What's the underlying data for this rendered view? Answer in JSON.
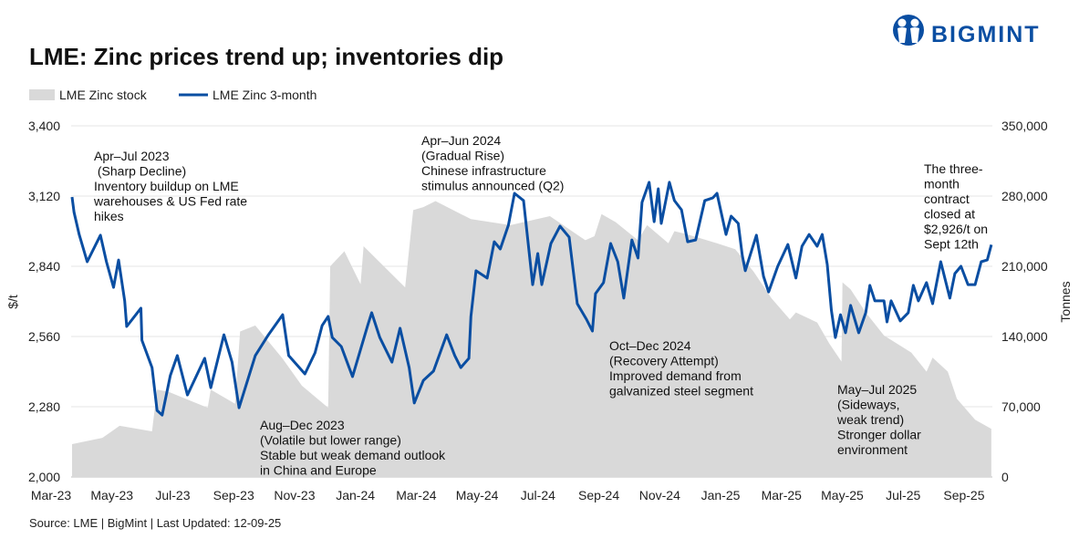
{
  "title": "LME: Zinc prices trend up; inventories dip",
  "brand": {
    "name": "BIGMINT",
    "color": "#0a4ea2"
  },
  "legend": [
    {
      "label": "LME Zinc stock",
      "color": "#d9d9d9",
      "kind": "area"
    },
    {
      "label": "LME Zinc 3-month",
      "color": "#0a4ea2",
      "kind": "line"
    }
  ],
  "source": "Source: LME | BigMint | Last Updated: 12-09-25",
  "chart_data": {
    "type": "line",
    "title": "LME: Zinc prices trend up; inventories dip",
    "ylabel": "$/t",
    "y2label": "Tonnes",
    "ylim": [
      2000,
      3400
    ],
    "y2lim": [
      0,
      350000
    ],
    "yticks": [
      "2,000",
      "2,280",
      "2,560",
      "2,840",
      "3,120",
      "3,400"
    ],
    "y2ticks": [
      "0",
      "70,000",
      "140,000",
      "210,000",
      "280,000",
      "350,000"
    ],
    "xticks": [
      "Mar-23",
      "May-23",
      "Jul-23",
      "Sep-23",
      "Nov-23",
      "Jan-24",
      "Mar-24",
      "May-24",
      "Jul-24",
      "Sep-24",
      "Nov-24",
      "Jan-25",
      "Mar-25",
      "May-25",
      "Jul-25",
      "Sep-25"
    ],
    "grid": true,
    "legend_position": "top-left",
    "series": [
      {
        "name": "LME Zinc stock",
        "type": "area",
        "axis": "right",
        "color": "#d9d9d9",
        "points": [
          [
            "2023-03-19",
            32700
          ],
          [
            "2023-04-18",
            39000
          ],
          [
            "2023-05-05",
            51000
          ],
          [
            "2023-06-06",
            45500
          ],
          [
            "2023-06-11",
            87000
          ],
          [
            "2023-06-22",
            85000
          ],
          [
            "2023-07-31",
            69000
          ],
          [
            "2023-08-03",
            87000
          ],
          [
            "2023-08-27",
            73000
          ],
          [
            "2023-09-01",
            145000
          ],
          [
            "2023-09-16",
            151000
          ],
          [
            "2023-10-13",
            118000
          ],
          [
            "2023-11-01",
            91000
          ],
          [
            "2023-11-27",
            69000
          ],
          [
            "2023-11-29",
            210000
          ],
          [
            "2023-12-13",
            225000
          ],
          [
            "2023-12-29",
            192000
          ],
          [
            "2024-01-01",
            230000
          ],
          [
            "2024-02-11",
            189000
          ],
          [
            "2024-02-19",
            266000
          ],
          [
            "2024-02-29",
            269000
          ],
          [
            "2024-03-12",
            275000
          ],
          [
            "2024-04-16",
            257000
          ],
          [
            "2024-05-25",
            251000
          ],
          [
            "2024-07-03",
            260000
          ],
          [
            "2024-08-07",
            236000
          ],
          [
            "2024-08-16",
            240000
          ],
          [
            "2024-08-23",
            262000
          ],
          [
            "2024-09-06",
            254000
          ],
          [
            "2024-09-28",
            236000
          ],
          [
            "2024-10-07",
            251000
          ],
          [
            "2024-10-28",
            233000
          ],
          [
            "2024-11-03",
            245000
          ],
          [
            "2024-11-15",
            242000
          ],
          [
            "2024-12-15",
            233000
          ],
          [
            "2025-01-02",
            227000
          ],
          [
            "2025-01-20",
            205000
          ],
          [
            "2025-02-07",
            178000
          ],
          [
            "2025-02-25",
            157000
          ],
          [
            "2025-03-03",
            164000
          ],
          [
            "2025-03-24",
            154000
          ],
          [
            "2025-04-05",
            133000
          ],
          [
            "2025-04-17",
            115000
          ],
          [
            "2025-04-18",
            194000
          ],
          [
            "2025-04-26",
            187000
          ],
          [
            "2025-05-11",
            164000
          ],
          [
            "2025-05-29",
            141000
          ],
          [
            "2025-06-25",
            124000
          ],
          [
            "2025-07-10",
            105000
          ],
          [
            "2025-07-16",
            119000
          ],
          [
            "2025-07-31",
            105000
          ],
          [
            "2025-08-09",
            78000
          ],
          [
            "2025-08-27",
            57000
          ],
          [
            "2025-09-12",
            48000
          ]
        ]
      },
      {
        "name": "LME Zinc 3-month",
        "type": "line",
        "axis": "left",
        "color": "#0a4ea2",
        "points": [
          [
            "2023-03-19",
            3116
          ],
          [
            "2023-03-21",
            3055
          ],
          [
            "2023-03-26",
            2967
          ],
          [
            "2023-04-03",
            2858
          ],
          [
            "2023-04-16",
            2964
          ],
          [
            "2023-04-22",
            2858
          ],
          [
            "2023-04-29",
            2756
          ],
          [
            "2023-05-04",
            2865
          ],
          [
            "2023-05-10",
            2702
          ],
          [
            "2023-05-12",
            2600
          ],
          [
            "2023-05-26",
            2673
          ],
          [
            "2023-05-27",
            2545
          ],
          [
            "2023-06-06",
            2436
          ],
          [
            "2023-06-11",
            2265
          ],
          [
            "2023-06-16",
            2247
          ],
          [
            "2023-06-24",
            2404
          ],
          [
            "2023-07-01",
            2484
          ],
          [
            "2023-07-11",
            2327
          ],
          [
            "2023-07-28",
            2473
          ],
          [
            "2023-08-03",
            2356
          ],
          [
            "2023-08-16",
            2567
          ],
          [
            "2023-08-24",
            2458
          ],
          [
            "2023-08-31",
            2276
          ],
          [
            "2023-09-16",
            2484
          ],
          [
            "2023-09-29",
            2567
          ],
          [
            "2023-10-13",
            2647
          ],
          [
            "2023-10-19",
            2484
          ],
          [
            "2023-11-04",
            2411
          ],
          [
            "2023-11-14",
            2495
          ],
          [
            "2023-11-21",
            2604
          ],
          [
            "2023-11-27",
            2640
          ],
          [
            "2023-12-01",
            2556
          ],
          [
            "2023-12-10",
            2520
          ],
          [
            "2023-12-21",
            2400
          ],
          [
            "2024-01-05",
            2604
          ],
          [
            "2024-01-09",
            2655
          ],
          [
            "2024-01-17",
            2556
          ],
          [
            "2024-01-29",
            2458
          ],
          [
            "2024-02-06",
            2593
          ],
          [
            "2024-02-15",
            2436
          ],
          [
            "2024-02-20",
            2295
          ],
          [
            "2024-02-29",
            2385
          ],
          [
            "2024-03-10",
            2422
          ],
          [
            "2024-03-23",
            2567
          ],
          [
            "2024-03-31",
            2484
          ],
          [
            "2024-04-06",
            2436
          ],
          [
            "2024-04-14",
            2473
          ],
          [
            "2024-04-16",
            2640
          ],
          [
            "2024-04-21",
            2822
          ],
          [
            "2024-05-02",
            2793
          ],
          [
            "2024-05-09",
            2938
          ],
          [
            "2024-05-15",
            2909
          ],
          [
            "2024-05-23",
            3004
          ],
          [
            "2024-05-29",
            3131
          ],
          [
            "2024-06-07",
            3102
          ],
          [
            "2024-06-16",
            2767
          ],
          [
            "2024-06-21",
            2891
          ],
          [
            "2024-06-25",
            2767
          ],
          [
            "2024-06-30",
            2858
          ],
          [
            "2024-07-04",
            2931
          ],
          [
            "2024-07-13",
            3000
          ],
          [
            "2024-07-22",
            2956
          ],
          [
            "2024-07-30",
            2691
          ],
          [
            "2024-08-08",
            2629
          ],
          [
            "2024-08-14",
            2582
          ],
          [
            "2024-08-17",
            2731
          ],
          [
            "2024-08-25",
            2775
          ],
          [
            "2024-09-01",
            2931
          ],
          [
            "2024-09-08",
            2858
          ],
          [
            "2024-09-14",
            2713
          ],
          [
            "2024-09-22",
            2945
          ],
          [
            "2024-09-28",
            2873
          ],
          [
            "2024-10-02",
            3095
          ],
          [
            "2024-10-09",
            3175
          ],
          [
            "2024-10-14",
            3018
          ],
          [
            "2024-10-18",
            3149
          ],
          [
            "2024-10-21",
            3011
          ],
          [
            "2024-10-29",
            3175
          ],
          [
            "2024-11-03",
            3102
          ],
          [
            "2024-11-10",
            3065
          ],
          [
            "2024-11-16",
            2938
          ],
          [
            "2024-11-24",
            2945
          ],
          [
            "2024-12-03",
            3102
          ],
          [
            "2024-12-11",
            3113
          ],
          [
            "2024-12-15",
            3131
          ],
          [
            "2024-12-24",
            2967
          ],
          [
            "2024-12-29",
            3040
          ],
          [
            "2025-01-05",
            3011
          ],
          [
            "2025-01-09",
            2884
          ],
          [
            "2025-01-12",
            2822
          ],
          [
            "2025-01-23",
            2964
          ],
          [
            "2025-01-30",
            2800
          ],
          [
            "2025-02-04",
            2738
          ],
          [
            "2025-02-13",
            2840
          ],
          [
            "2025-02-23",
            2927
          ],
          [
            "2025-03-03",
            2793
          ],
          [
            "2025-03-09",
            2920
          ],
          [
            "2025-03-16",
            2967
          ],
          [
            "2025-03-24",
            2920
          ],
          [
            "2025-03-29",
            2967
          ],
          [
            "2025-04-03",
            2847
          ],
          [
            "2025-04-07",
            2665
          ],
          [
            "2025-04-11",
            2556
          ],
          [
            "2025-04-16",
            2647
          ],
          [
            "2025-04-21",
            2575
          ],
          [
            "2025-04-26",
            2684
          ],
          [
            "2025-05-04",
            2575
          ],
          [
            "2025-05-11",
            2655
          ],
          [
            "2025-05-15",
            2764
          ],
          [
            "2025-05-20",
            2702
          ],
          [
            "2025-05-29",
            2702
          ],
          [
            "2025-06-01",
            2618
          ],
          [
            "2025-06-05",
            2702
          ],
          [
            "2025-06-14",
            2622
          ],
          [
            "2025-06-22",
            2655
          ],
          [
            "2025-06-27",
            2764
          ],
          [
            "2025-07-02",
            2702
          ],
          [
            "2025-07-10",
            2775
          ],
          [
            "2025-07-16",
            2691
          ],
          [
            "2025-07-24",
            2858
          ],
          [
            "2025-08-02",
            2713
          ],
          [
            "2025-08-07",
            2811
          ],
          [
            "2025-08-13",
            2840
          ],
          [
            "2025-08-20",
            2767
          ],
          [
            "2025-08-27",
            2767
          ],
          [
            "2025-09-02",
            2858
          ],
          [
            "2025-09-08",
            2865
          ],
          [
            "2025-09-12",
            2926
          ]
        ]
      }
    ],
    "annotations": [
      {
        "lines": [
          "Apr–Jul 2023",
          " (Sharp Decline)",
          "Inventory buildup on LME",
          "warehouses & US Fed rate",
          "hikes"
        ]
      },
      {
        "lines": [
          "Aug–Dec 2023",
          "(Volatile but lower range)",
          "Stable but weak demand outlook",
          "in China and Europe"
        ]
      },
      {
        "lines": [
          "Apr–Jun 2024",
          "(Gradual Rise)",
          "Chinese infrastructure",
          "stimulus announced (Q2)"
        ]
      },
      {
        "lines": [
          "Oct–Dec 2024",
          "(Recovery Attempt)",
          "Improved demand from",
          "galvanized steel segment"
        ]
      },
      {
        "lines": [
          "May–Jul 2025",
          "(Sideways,",
          "weak trend)",
          "Stronger dollar",
          "environment"
        ]
      },
      {
        "lines": [
          "The three-",
          "month",
          "contract",
          "closed at",
          "$2,926/t on",
          "Sept 12th"
        ]
      }
    ]
  }
}
